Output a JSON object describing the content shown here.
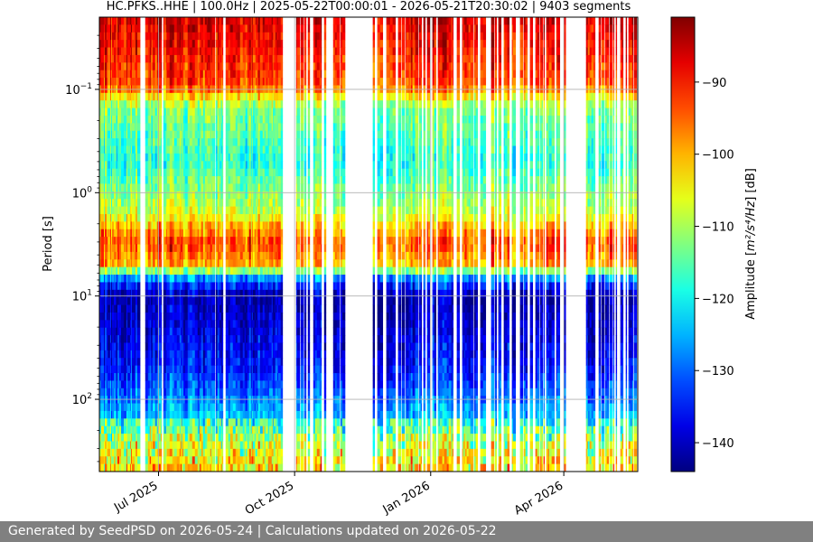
{
  "chart_data": {
    "type": "heatmap",
    "title": "HC.PFKS..HHE | 100.0Hz | 2025-05-22T00:00:01 - 2026-05-21T20:30:02 | 9403 segments",
    "xlabel": "",
    "ylabel": "Period [s]",
    "y_scale": "log",
    "y_inverted": true,
    "xlim": [
      "2025-05-22",
      "2026-05-21"
    ],
    "ylim": [
      0.02,
      500
    ],
    "x_ticks": [
      {
        "date": "2025-07-01",
        "label": "Jul 2025"
      },
      {
        "date": "2025-10-01",
        "label": "Oct 2025"
      },
      {
        "date": "2026-01-01",
        "label": "Jan 2026"
      },
      {
        "date": "2026-04-01",
        "label": "Apr 2026"
      }
    ],
    "y_ticks": [
      {
        "value": 0.1,
        "base": "10",
        "exp": "−1"
      },
      {
        "value": 1,
        "base": "10",
        "exp": "0"
      },
      {
        "value": 10,
        "base": "10",
        "exp": "1"
      },
      {
        "value": 100,
        "base": "10",
        "exp": "2"
      }
    ],
    "grid": true,
    "colormap": "jet",
    "colorbar": {
      "label_pre": "Amplitude [",
      "label_unit": "m²/s⁴/Hz",
      "label_post": "] [dB]",
      "range": [
        -144,
        -81
      ],
      "ticks": [
        -90,
        -100,
        -110,
        -120,
        -130,
        -140
      ]
    },
    "period_profile": [
      {
        "period": 0.02,
        "db": -86
      },
      {
        "period": 0.09,
        "db": -93
      },
      {
        "period": 0.15,
        "db": -112
      },
      {
        "period": 0.5,
        "db": -118
      },
      {
        "period": 1.5,
        "db": -108
      },
      {
        "period": 3,
        "db": -94
      },
      {
        "period": 5,
        "db": -100
      },
      {
        "period": 7,
        "db": -130
      },
      {
        "period": 10,
        "db": -141
      },
      {
        "period": 50,
        "db": -135
      },
      {
        "period": 150,
        "db": -124
      },
      {
        "period": 250,
        "db": -112
      },
      {
        "period": 500,
        "db": -105
      }
    ],
    "data_coverage": [
      {
        "start": "2025-05-22",
        "end": "2025-06-18",
        "density": 0.95
      },
      {
        "start": "2025-06-22",
        "end": "2025-09-22",
        "density": 0.95
      },
      {
        "start": "2025-09-28",
        "end": "2025-09-29",
        "density": 0.5
      },
      {
        "start": "2025-10-02",
        "end": "2025-11-01",
        "density": 0.6
      },
      {
        "start": "2025-11-01",
        "end": "2025-11-07",
        "density": 0.3
      },
      {
        "start": "2025-11-21",
        "end": "2026-03-30",
        "density": 0.6
      },
      {
        "start": "2026-04-01",
        "end": "2026-04-02",
        "density": 1.0
      },
      {
        "start": "2026-04-16",
        "end": "2026-05-21",
        "density": 0.6
      }
    ]
  },
  "footer": {
    "text": "Generated by SeedPSD on 2026-05-24 | Calculations updated on 2026-05-22"
  }
}
